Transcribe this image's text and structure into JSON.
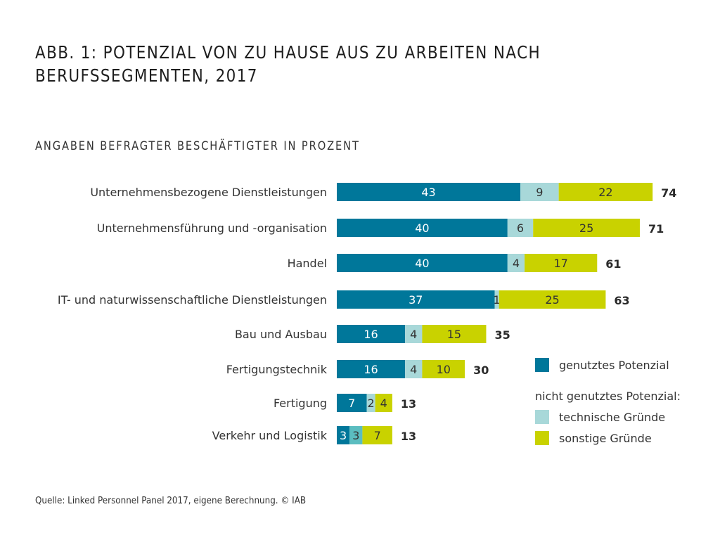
{
  "header": {
    "title_line1": "ABB. 1: POTENZIAL VON ZU HAUSE AUS ZU ARBEITEN NACH",
    "title_line2": "BERUFSSEGMENTEN, 2017",
    "subtitle": "ANGABEN BEFRAGTER BESCHÄFTIGTER IN PROZENT"
  },
  "footer": {
    "source": "Quelle: Linked Personnel Panel 2017, eigene Berechnung. © IAB"
  },
  "colors": {
    "genutzt": "#00779a",
    "technisch": "#a8d8d9",
    "technisch_alt": "#5bbdc0",
    "sonstig": "#c9d200",
    "segment_text_dark_bg": "#ffffff",
    "segment_text_light_bg": "#333333"
  },
  "chart_data": {
    "type": "bar",
    "orientation": "horizontal",
    "stacked": true,
    "title": "ABB. 1: POTENZIAL VON ZU HAUSE AUS ZU ARBEITEN NACH BERUFSSEGMENTEN, 2017",
    "subtitle": "ANGABEN BEFRAGTER BESCHÄFTIGTER IN PROZENT",
    "xlabel": "",
    "ylabel": "",
    "unit": "Prozent",
    "grid": false,
    "categories": [
      "Unternehmensbezogene Dienstleistungen",
      "Unternehmensführung und -organisation",
      "Handel",
      "IT- und naturwissenschaftliche Dienstleistungen",
      "Bau und Ausbau",
      "Fertigungstechnik",
      "Fertigung",
      "Verkehr und Logistik"
    ],
    "series": [
      {
        "name": "genutztes Potenzial",
        "key": "genutzt",
        "values": [
          43,
          40,
          40,
          37,
          16,
          16,
          7,
          3
        ]
      },
      {
        "name": "technische Gründe",
        "key": "technisch",
        "values": [
          9,
          6,
          4,
          1,
          4,
          4,
          2,
          3
        ]
      },
      {
        "name": "sonstige Gründe",
        "key": "sonstig",
        "values": [
          22,
          25,
          17,
          25,
          15,
          10,
          4,
          7
        ]
      }
    ],
    "totals": [
      74,
      71,
      61,
      63,
      35,
      30,
      13,
      13
    ],
    "legend": {
      "placement": "right",
      "items": [
        {
          "label": "genutztes Potenzial",
          "key": "genutzt"
        },
        {
          "heading": "nicht genutztes Potenzial:"
        },
        {
          "label": "technische Gründe",
          "key": "technisch"
        },
        {
          "label": "sonstige Gründe",
          "key": "sonstig"
        }
      ]
    }
  }
}
